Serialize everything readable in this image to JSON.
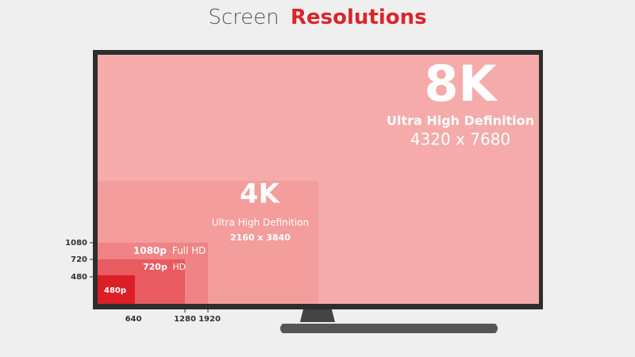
{
  "title": {
    "prefix": "Screen",
    "highlight": "Resolutions"
  },
  "tiers": [
    {
      "name": "8K",
      "subtitle": "Ultra High Definition",
      "dimensions": "4320 x 7680"
    },
    {
      "name": "4K",
      "subtitle": "Ultra High Definition",
      "dimensions": "2160 x 3840"
    },
    {
      "name": "1080p",
      "subtitle": "Full HD"
    },
    {
      "name": "720p",
      "subtitle": "HD"
    },
    {
      "name": "480p"
    }
  ],
  "axis": {
    "heights": [
      1080,
      720,
      480
    ],
    "widths": [
      640,
      1280,
      1920
    ]
  }
}
